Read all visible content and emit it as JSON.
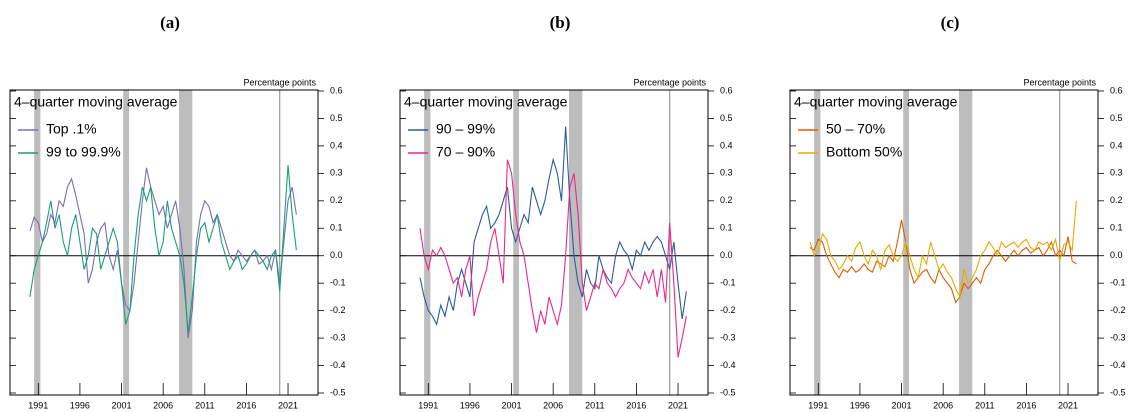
{
  "chart_data": [
    {
      "type": "line",
      "title": "(a)",
      "y_label": "Percentage points",
      "legend_title": "4–quarter moving average",
      "x": [
        1990,
        1990.5,
        1991,
        1991.5,
        1992,
        1992.5,
        1993,
        1993.5,
        1994,
        1994.5,
        1995,
        1995.5,
        1996,
        1996.5,
        1997,
        1997.5,
        1998,
        1998.5,
        1999,
        1999.5,
        2000,
        2000.5,
        2001,
        2001.5,
        2002,
        2002.5,
        2003,
        2003.5,
        2004,
        2004.5,
        2005,
        2005.5,
        2006,
        2006.5,
        2007,
        2007.5,
        2008,
        2008.5,
        2009,
        2009.5,
        2010,
        2010.5,
        2011,
        2011.5,
        2012,
        2012.5,
        2013,
        2013.5,
        2014,
        2014.5,
        2015,
        2015.5,
        2016,
        2016.5,
        2017,
        2017.5,
        2018,
        2018.5,
        2019,
        2019.5,
        2020,
        2020.5,
        2021,
        2021.5,
        2022
      ],
      "series": [
        {
          "name": "Top .1%",
          "color": "#7b6db3",
          "values": [
            0.09,
            0.14,
            0.12,
            0.05,
            0.08,
            0.15,
            0.12,
            0.2,
            0.18,
            0.25,
            0.28,
            0.22,
            0.15,
            0.08,
            -0.1,
            -0.05,
            0.05,
            0.1,
            0.12,
            0,
            -0.05,
            0.02,
            -0.1,
            -0.18,
            -0.2,
            -0.1,
            0.05,
            0.2,
            0.32,
            0.25,
            0.2,
            0.15,
            0.18,
            0.1,
            0.15,
            0.2,
            0.1,
            -0.05,
            -0.3,
            -0.2,
            0.05,
            0.15,
            0.2,
            0.18,
            0.12,
            0.15,
            0.1,
            0.05,
            0,
            -0.02,
            0.02,
            0,
            -0.02,
            0,
            0.02,
            -0.03,
            -0.02,
            0,
            -0.05,
            0.02,
            -0.1,
            0.05,
            0.2,
            0.25,
            0.15
          ]
        },
        {
          "name": "99 to 99.9%",
          "color": "#1b9e77",
          "values": [
            -0.15,
            -0.05,
            0,
            0.05,
            0.12,
            0.2,
            0.1,
            0.15,
            0.05,
            0,
            0.1,
            0.15,
            0.05,
            -0.05,
            0,
            0.1,
            0.08,
            -0.05,
            0,
            0.05,
            0.1,
            0.05,
            -0.1,
            -0.25,
            -0.2,
            0,
            0.15,
            0.25,
            0.2,
            0.25,
            0.1,
            0,
            0.05,
            0.2,
            0.1,
            0.05,
            0,
            -0.1,
            -0.28,
            -0.15,
            0,
            0.1,
            0.12,
            0.05,
            0.1,
            0.15,
            0.05,
            0,
            -0.05,
            -0.02,
            0,
            -0.05,
            -0.03,
            0,
            0.02,
            0,
            -0.02,
            -0.05,
            0,
            0.02,
            -0.13,
            0.1,
            0.33,
            0.15,
            0.02
          ]
        }
      ],
      "shaded": [
        [
          1990.5,
          1991.25
        ],
        [
          2001.2,
          2001.9
        ],
        [
          2007.9,
          2009.5
        ]
      ],
      "vline": 2020,
      "xlim": [
        1987.6,
        2024.6
      ],
      "ylim": [
        -0.5,
        0.6
      ],
      "xticks": [
        1991,
        1996,
        2001,
        2006,
        2011,
        2016,
        2021
      ],
      "yticks": [
        -0.5,
        -0.4,
        -0.3,
        -0.2,
        -0.1,
        {
          "value": 0,
          "label": "0.0"
        },
        0.1,
        0.2,
        0.3,
        0.4,
        0.5,
        0.6
      ]
    },
    {
      "type": "line",
      "title": "(b)",
      "y_label": "Percentage points",
      "legend_title": "4–quarter moving average",
      "x": [
        1990,
        1990.5,
        1991,
        1991.5,
        1992,
        1992.5,
        1993,
        1993.5,
        1994,
        1994.5,
        1995,
        1995.5,
        1996,
        1996.5,
        1997,
        1997.5,
        1998,
        1998.5,
        1999,
        1999.5,
        2000,
        2000.5,
        2001,
        2001.5,
        2002,
        2002.5,
        2003,
        2003.5,
        2004,
        2004.5,
        2005,
        2005.5,
        2006,
        2006.5,
        2007,
        2007.5,
        2008,
        2008.5,
        2009,
        2009.5,
        2010,
        2010.5,
        2011,
        2011.5,
        2012,
        2012.5,
        2013,
        2013.5,
        2014,
        2014.5,
        2015,
        2015.5,
        2016,
        2016.5,
        2017,
        2017.5,
        2018,
        2018.5,
        2019,
        2019.5,
        2020,
        2020.5,
        2021,
        2021.5,
        2022
      ],
      "series": [
        {
          "name": "90 – 99%",
          "color": "#2c5aa0",
          "values": [
            -0.08,
            -0.15,
            -0.2,
            -0.22,
            -0.25,
            -0.18,
            -0.22,
            -0.15,
            -0.2,
            -0.1,
            -0.05,
            -0.1,
            -0.15,
            0.05,
            0.1,
            0.15,
            0.18,
            0.1,
            0.12,
            0.15,
            0.2,
            0.25,
            0.1,
            0.05,
            0.1,
            0.15,
            0.12,
            0.25,
            0.2,
            0.15,
            0.2,
            0.28,
            0.35,
            0.3,
            0.2,
            0.47,
            0.2,
            0,
            -0.1,
            -0.15,
            -0.05,
            -0.1,
            -0.12,
            0,
            -0.05,
            -0.08,
            -0.1,
            0,
            0.05,
            0.02,
            0,
            -0.05,
            0.02,
            0,
            0.05,
            0.02,
            0.05,
            0.07,
            0.05,
            0,
            -0.05,
            0.05,
            -0.1,
            -0.23,
            -0.13
          ]
        },
        {
          "name": "70 – 90%",
          "color": "#e7298a",
          "values": [
            0.1,
            0,
            -0.05,
            0.02,
            0,
            0.03,
            0,
            -0.05,
            -0.1,
            -0.08,
            -0.15,
            -0.05,
            0,
            -0.22,
            -0.15,
            -0.1,
            -0.05,
            0.05,
            0.1,
            0,
            -0.1,
            0.35,
            0.3,
            0.15,
            0.05,
            0,
            -0.1,
            -0.2,
            -0.28,
            -0.2,
            -0.25,
            -0.15,
            -0.2,
            -0.25,
            -0.18,
            0,
            0.25,
            0.3,
            0.15,
            -0.1,
            -0.2,
            -0.15,
            -0.1,
            -0.12,
            -0.05,
            -0.1,
            -0.12,
            -0.15,
            -0.12,
            -0.1,
            -0.05,
            -0.08,
            -0.1,
            -0.12,
            -0.06,
            -0.1,
            -0.05,
            -0.15,
            -0.05,
            -0.17,
            0.12,
            -0.1,
            -0.37,
            -0.3,
            -0.22
          ]
        }
      ],
      "shaded": [
        [
          1990.5,
          1991.25
        ],
        [
          2001.2,
          2001.9
        ],
        [
          2007.9,
          2009.5
        ]
      ],
      "vline": 2020,
      "xlim": [
        1987.6,
        2024.6
      ],
      "ylim": [
        -0.5,
        0.6
      ],
      "xticks": [
        1991,
        1996,
        2001,
        2006,
        2011,
        2016,
        2021
      ],
      "yticks": [
        -0.5,
        -0.4,
        -0.3,
        -0.2,
        -0.1,
        {
          "value": 0,
          "label": "0.0"
        },
        0.1,
        0.2,
        0.3,
        0.4,
        0.5,
        0.6
      ]
    },
    {
      "type": "line",
      "title": "(c)",
      "y_label": "Percentage points",
      "legend_title": "4–quarter moving average",
      "x": [
        1990,
        1990.5,
        1991,
        1991.5,
        1992,
        1992.5,
        1993,
        1993.5,
        1994,
        1994.5,
        1995,
        1995.5,
        1996,
        1996.5,
        1997,
        1997.5,
        1998,
        1998.5,
        1999,
        1999.5,
        2000,
        2000.5,
        2001,
        2001.5,
        2002,
        2002.5,
        2003,
        2003.5,
        2004,
        2004.5,
        2005,
        2005.5,
        2006,
        2006.5,
        2007,
        2007.5,
        2008,
        2008.5,
        2009,
        2009.5,
        2010,
        2010.5,
        2011,
        2011.5,
        2012,
        2012.5,
        2013,
        2013.5,
        2014,
        2014.5,
        2015,
        2015.5,
        2016,
        2016.5,
        2017,
        2017.5,
        2018,
        2018.5,
        2019,
        2019.5,
        2020,
        2020.5,
        2021,
        2021.5,
        2022
      ],
      "series": [
        {
          "name": "50 – 70%",
          "color": "#d95f02",
          "values": [
            0.03,
            0.02,
            0.06,
            0.05,
            0,
            -0.03,
            -0.06,
            -0.08,
            -0.05,
            -0.06,
            -0.04,
            -0.06,
            -0.05,
            -0.03,
            -0.05,
            -0.06,
            -0.02,
            -0.03,
            -0.04,
            0,
            -0.02,
            0.05,
            0.13,
            0.05,
            -0.05,
            -0.1,
            -0.08,
            -0.06,
            -0.05,
            -0.08,
            -0.1,
            -0.05,
            -0.08,
            -0.1,
            -0.12,
            -0.17,
            -0.15,
            -0.1,
            -0.12,
            -0.1,
            -0.08,
            -0.1,
            -0.05,
            -0.03,
            0,
            0.02,
            0,
            -0.02,
            0,
            0.02,
            0,
            0.02,
            0.03,
            0.01,
            0.02,
            0.03,
            0,
            0.02,
            0.05,
            0,
            0.02,
            0,
            0.07,
            -0.02,
            -0.03
          ]
        },
        {
          "name": "Bottom 50%",
          "color": "#e6ab02",
          "values": [
            0.05,
            0,
            0.02,
            0.08,
            0.06,
            0,
            -0.02,
            -0.05,
            -0.03,
            0,
            -0.02,
            0.03,
            0.05,
            0,
            -0.03,
            0.02,
            0,
            -0.05,
            0.02,
            0.04,
            0,
            -0.02,
            0,
            0.05,
            0,
            -0.05,
            -0.08,
            0,
            -0.03,
            0.05,
            0,
            -0.05,
            -0.03,
            -0.06,
            -0.08,
            -0.12,
            -0.15,
            -0.05,
            -0.1,
            -0.08,
            -0.05,
            0,
            0.02,
            0.05,
            0.03,
            0,
            0.05,
            0.03,
            0.04,
            0.05,
            0.03,
            0.05,
            0.06,
            0.03,
            0.02,
            0.05,
            0.04,
            0.05,
            0.02,
            0.06,
            -0.02,
            0.04,
            0.05,
            0.02,
            0.2
          ]
        }
      ],
      "shaded": [
        [
          1990.5,
          1991.25
        ],
        [
          2001.2,
          2001.9
        ],
        [
          2007.9,
          2009.5
        ]
      ],
      "vline": 2020,
      "xlim": [
        1987.6,
        2024.6
      ],
      "ylim": [
        -0.5,
        0.6
      ],
      "xticks": [
        1991,
        1996,
        2001,
        2006,
        2011,
        2016,
        2021
      ],
      "yticks": [
        -0.5,
        -0.4,
        -0.3,
        -0.2,
        -0.1,
        {
          "value": 0,
          "label": "0.0"
        },
        0.1,
        0.2,
        0.3,
        0.4,
        0.5,
        0.6
      ]
    }
  ]
}
